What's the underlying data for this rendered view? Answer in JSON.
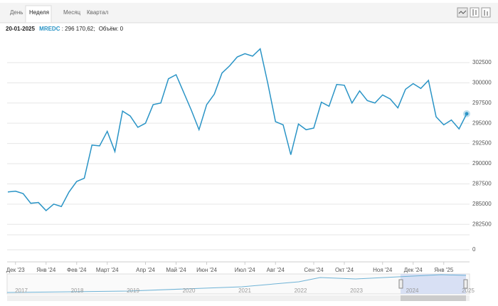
{
  "tabs": [
    "День",
    "Неделя",
    "Месяц",
    "Квартал"
  ],
  "selected_tab": 1,
  "header": {
    "date": "20-01-2025",
    "symbol": "MREDC",
    "price_text": ": 296 170,62;",
    "volume_text": "Объём: 0"
  },
  "chart_data": {
    "type": "line",
    "color": "#2a94c6",
    "grid": true,
    "categories": [
      null,
      "Дек '23",
      null,
      null,
      null,
      "Янв '24",
      null,
      null,
      null,
      "Фев '24",
      null,
      null,
      null,
      "Март '24",
      null,
      null,
      null,
      null,
      "Апр '24",
      null,
      null,
      null,
      "Май '24",
      null,
      null,
      null,
      "Июн '24",
      null,
      null,
      null,
      null,
      "Июл '24",
      null,
      null,
      null,
      "Авг '24",
      null,
      null,
      null,
      null,
      "Сен '24",
      null,
      null,
      null,
      "Окт '24",
      null,
      null,
      null,
      null,
      "Ноя '24",
      null,
      null,
      null,
      "Дек '24",
      null,
      null,
      null,
      "Янв '25",
      null,
      null,
      null
    ],
    "values": [
      286500,
      286600,
      286300,
      285100,
      285200,
      284200,
      285000,
      284700,
      286500,
      287800,
      288200,
      292300,
      292200,
      294000,
      291500,
      296500,
      295900,
      294500,
      295000,
      297300,
      297500,
      300500,
      301000,
      298800,
      296600,
      294200,
      297300,
      298600,
      301200,
      302100,
      303200,
      303600,
      303300,
      304200,
      299900,
      295200,
      294800,
      291100,
      294900,
      294200,
      294400,
      297600,
      297100,
      299800,
      299700,
      297500,
      299000,
      297800,
      297500,
      298500,
      298000,
      296900,
      299200,
      299900,
      299300,
      300300,
      295800,
      294800,
      295400,
      294300,
      296170.62
    ],
    "ylim": [
      281200,
      305400
    ],
    "yticks": [
      282500,
      285000,
      287500,
      290000,
      292500,
      295000,
      297500,
      300000,
      302500
    ],
    "volume_yticks": [
      0
    ]
  },
  "navigator": {
    "years": [
      "2017",
      "2018",
      "2019",
      "2020",
      "2021",
      "2022",
      "2023",
      "2024",
      "2025"
    ]
  }
}
